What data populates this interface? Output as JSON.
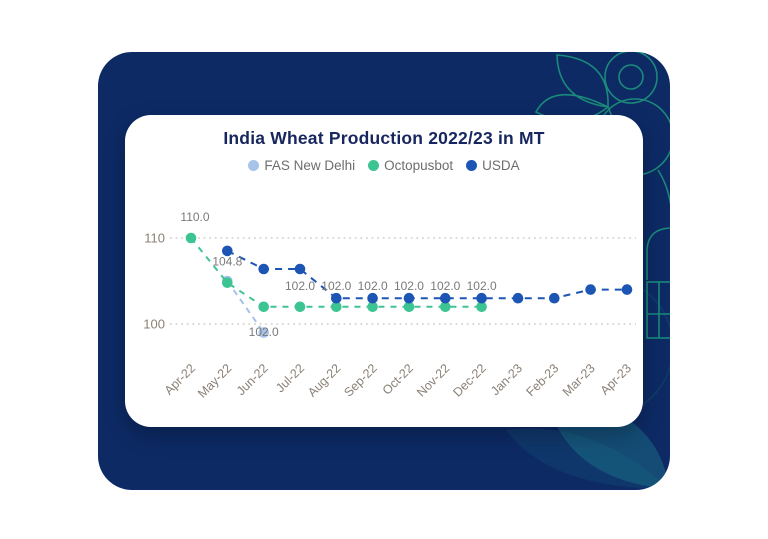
{
  "page": {
    "background": "#ffffff"
  },
  "panel": {
    "background": "#0d2a65",
    "decor_stroke": "#1b8a7a",
    "decor_fill": "#1f7b8c",
    "decor_accent": "#2ec79b"
  },
  "card": {
    "background": "#ffffff"
  },
  "chart_data": {
    "type": "line",
    "title": "India Wheat Production 2022/23 in MT",
    "categories": [
      "Apr-22",
      "May-22",
      "Jun-22",
      "Jul-22",
      "Aug-22",
      "Sep-22",
      "Oct-22",
      "Nov-22",
      "Dec-22",
      "Jan-23",
      "Feb-23",
      "Mar-23",
      "Apr-23"
    ],
    "yticks": [
      {
        "value": 110,
        "label": "110"
      },
      {
        "value": 100,
        "label": "100"
      }
    ],
    "ylim": [
      96,
      112
    ],
    "grid": "horizontal-dotted",
    "legend_position": "top",
    "series": [
      {
        "name": "FAS New Delhi",
        "color": "#a7c3e9",
        "dash": "6 5",
        "values": [
          null,
          105.0,
          99.0,
          null,
          null,
          null,
          null,
          null,
          null,
          null,
          null,
          null,
          null
        ]
      },
      {
        "name": "Octopusbot",
        "color": "#3cc493",
        "dash": "6 6",
        "values": [
          110.0,
          104.8,
          102.0,
          102.0,
          102.0,
          102.0,
          102.0,
          102.0,
          102.0,
          null,
          null,
          null,
          null
        ],
        "point_labels": [
          "110.0",
          "104.8",
          "102.0",
          "102.0",
          "102.0",
          "102.0",
          "102.0",
          "102.0",
          "102.0",
          null,
          null,
          null,
          null
        ],
        "label_positions": [
          "above",
          "above",
          "below",
          "above",
          "above",
          "above",
          "above",
          "above",
          "above",
          null,
          null,
          null,
          null
        ]
      },
      {
        "name": "USDA",
        "color": "#1d55b4",
        "dash": "7 6",
        "values": [
          null,
          108.5,
          106.4,
          106.4,
          103.0,
          103.0,
          103.0,
          103.0,
          103.0,
          103.0,
          103.0,
          104.0,
          104.0
        ]
      }
    ],
    "colors": {
      "title": "#17265f",
      "legend_text": "#6e6e6e",
      "axis_ticks": "#8a8076",
      "point_labels": "#7a7a7a",
      "gridline": "#c9c4bd"
    }
  }
}
